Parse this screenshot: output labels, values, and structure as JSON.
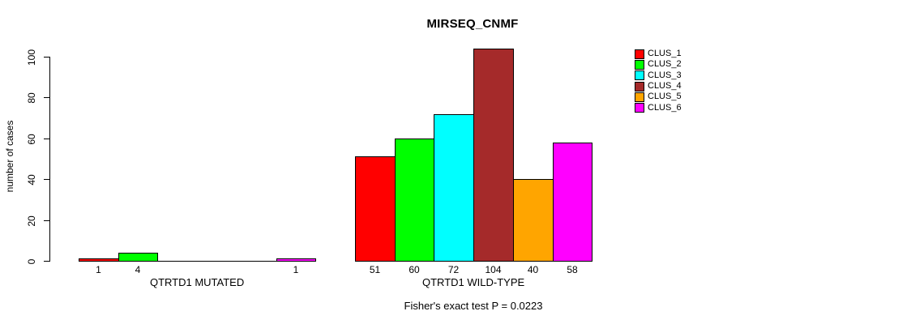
{
  "chart": {
    "title": "MIRSEQ_CNMF",
    "ylabel": "number of cases",
    "footer": "Fisher's exact test P = 0.0223"
  },
  "chart_data": {
    "type": "bar",
    "title": "MIRSEQ_CNMF",
    "xlabel": "",
    "ylabel": "number of cases",
    "ylim": [
      0,
      104
    ],
    "y_ticks": [
      0,
      20,
      40,
      60,
      80,
      100
    ],
    "grid": false,
    "legend_position": "top-right",
    "legend": [
      "CLUS_1",
      "CLUS_2",
      "CLUS_3",
      "CLUS_4",
      "CLUS_5",
      "CLUS_6"
    ],
    "colors": [
      "#FF0000",
      "#00FF00",
      "#00FFFF",
      "#A52A2A",
      "#FFA500",
      "#FF00FF"
    ],
    "groups": [
      {
        "label": "QTRTD1 MUTATED",
        "values": [
          1,
          4,
          0,
          0,
          0,
          1
        ],
        "bar_labels": [
          "1",
          "4",
          "",
          "",
          "",
          "1"
        ]
      },
      {
        "label": "QTRTD1 WILD-TYPE",
        "values": [
          51,
          60,
          72,
          104,
          40,
          58
        ],
        "bar_labels": [
          "51",
          "60",
          "72",
          "104",
          "40",
          "58"
        ]
      }
    ],
    "annotation": "Fisher's exact test P = 0.0223",
    "background": "#FFFFFF",
    "axis_color": "#000000"
  }
}
